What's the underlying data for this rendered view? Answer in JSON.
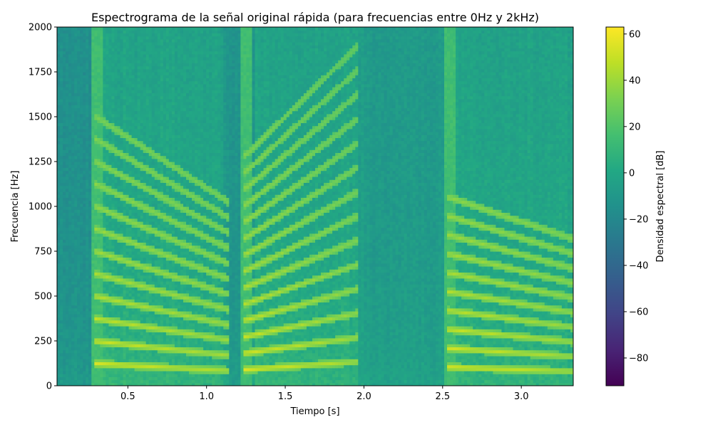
{
  "chart_data": {
    "type": "heatmap",
    "title": "Espectrograma de la señal original rápida (para frecuencias entre 0Hz y 2kHz)",
    "xlabel": "Tiempo [s]",
    "ylabel": "Frecuencia [Hz]",
    "xlim": [
      0.05,
      3.33
    ],
    "ylim": [
      0,
      2000
    ],
    "x_ticks": [
      "0.5",
      "1.0",
      "1.5",
      "2.0",
      "2.5",
      "3.0"
    ],
    "y_ticks": [
      "0",
      "250",
      "500",
      "750",
      "1000",
      "1250",
      "1500",
      "1750",
      "2000"
    ],
    "colormap": "viridis",
    "colorbar": {
      "label": "Densidad espectral [dB]",
      "range": [
        -92,
        63
      ],
      "ticks": [
        "−80",
        "−60",
        "−40",
        "−20",
        "0",
        "20",
        "40",
        "60"
      ]
    },
    "segments": [
      {
        "t_start": 0.3,
        "t_end": 1.15,
        "f0_start": 125,
        "f0_end": 85,
        "harmonics": 12
      },
      {
        "t_start": 1.25,
        "t_end": 1.97,
        "f0_start": 92,
        "f0_end": 136,
        "harmonics": 14
      },
      {
        "t_start": 2.55,
        "t_end": 3.33,
        "f0_start": 105,
        "f0_end": 82,
        "harmonics": 10
      }
    ],
    "background_level_db": -5
  }
}
